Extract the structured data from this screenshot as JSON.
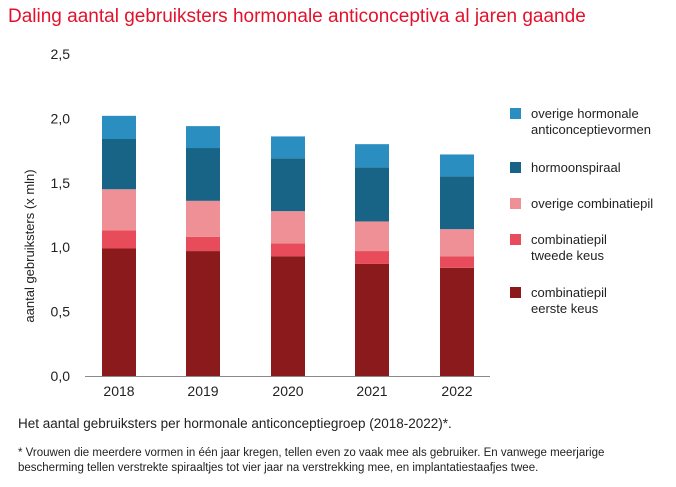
{
  "title": "Daling aantal gebruiksters hormonale anticonceptiva al jaren gaande",
  "caption": "Het aantal gebruiksters per hormonale anticonceptiegroep (2018-2022)*.",
  "footnote": "* Vrouwen die meerdere vormen in één jaar kregen, tellen even zo vaak mee als gebruiker. En vanwege meerjarige bescherming tellen verstrekte spiraaltjes tot vier jaar na verstrekking mee, en implantatiestaafjes twee.",
  "chart_data": {
    "type": "bar",
    "stacked": true,
    "title": "Daling aantal gebruiksters hormonale anticonceptiva al jaren gaande",
    "xlabel": "",
    "ylabel": "aantal gebruiksters (x mln)",
    "ylim": [
      0,
      2.5
    ],
    "yticks": [
      "0,0",
      "0,5",
      "1,0",
      "1,5",
      "2,0",
      "2,5"
    ],
    "ytick_values": [
      0,
      0.5,
      1.0,
      1.5,
      2.0,
      2.5
    ],
    "categories": [
      "2018",
      "2019",
      "2020",
      "2021",
      "2022"
    ],
    "grid": false,
    "legend_position": "right",
    "series": [
      {
        "name": "combinatiepil\neerste keus",
        "color": "#8b1a1d",
        "values": [
          0.99,
          0.97,
          0.93,
          0.87,
          0.84
        ]
      },
      {
        "name": "combinatiepil\ntweede keus",
        "color": "#e84c5a",
        "values": [
          0.14,
          0.11,
          0.1,
          0.1,
          0.09
        ]
      },
      {
        "name": "overige combinatiepil",
        "color": "#ef8f96",
        "values": [
          0.32,
          0.28,
          0.25,
          0.23,
          0.21
        ]
      },
      {
        "name": "hormoonspiraal",
        "color": "#176487",
        "values": [
          0.39,
          0.41,
          0.41,
          0.42,
          0.41
        ]
      },
      {
        "name": "overige hormonale\nanticonceptievormen",
        "color": "#2a8ec1",
        "values": [
          0.18,
          0.17,
          0.17,
          0.18,
          0.17
        ]
      }
    ],
    "legend_order": [
      "overige hormonale\nanticonceptievormen",
      "hormoonspiraal",
      "overige combinatiepil",
      "combinatiepil\ntweede keus",
      "combinatiepil\neerste keus"
    ]
  }
}
